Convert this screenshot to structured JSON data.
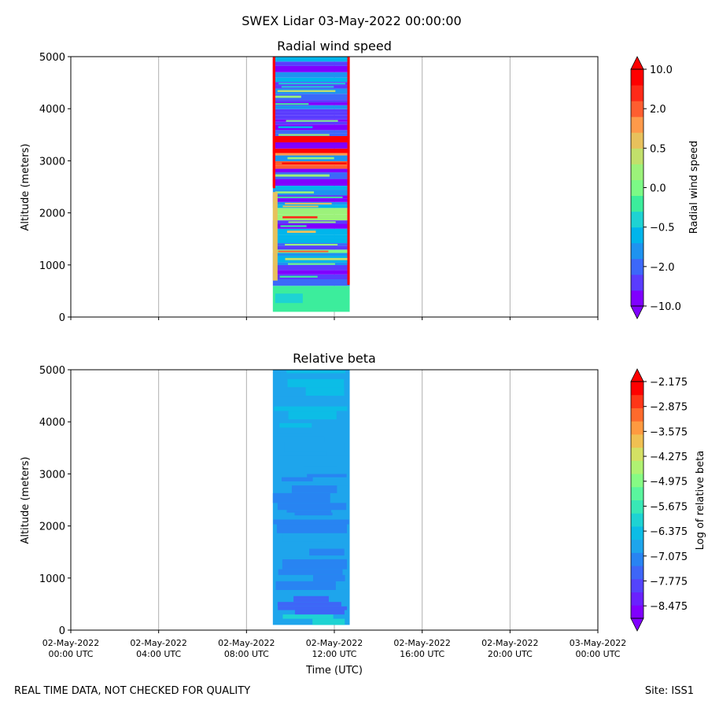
{
  "chart_data": {
    "type": "heatmap",
    "suptitle": "SWEX Lidar 03-May-2022 00:00:00",
    "xlabel": "Time (UTC)",
    "x_ticks": [
      {
        "hours": 0,
        "line1": "02-May-2022",
        "line2": "00:00 UTC"
      },
      {
        "hours": 4,
        "line1": "02-May-2022",
        "line2": "04:00 UTC"
      },
      {
        "hours": 8,
        "line1": "02-May-2022",
        "line2": "08:00 UTC"
      },
      {
        "hours": 12,
        "line1": "02-May-2022",
        "line2": "12:00 UTC"
      },
      {
        "hours": 16,
        "line1": "02-May-2022",
        "line2": "16:00 UTC"
      },
      {
        "hours": 20,
        "line1": "02-May-2022",
        "line2": "20:00 UTC"
      },
      {
        "hours": 24,
        "line1": "03-May-2022",
        "line2": "00:00 UTC"
      }
    ],
    "xlim_hours": [
      0,
      24
    ],
    "data_time_range_hours": [
      9.2,
      12.7
    ],
    "panels": [
      {
        "id": "top",
        "title": "Radial wind speed",
        "ylabel": "Altitude (meters)",
        "ylim": [
          0,
          5000
        ],
        "y_ticks": [
          0,
          1000,
          2000,
          3000,
          4000,
          5000
        ],
        "colorbar_label": "Radial wind speed",
        "colorbar_ticks": [
          "10.0",
          "2.0",
          "0.5",
          "0.0",
          "−0.5",
          "−2.0",
          "−10.0"
        ],
        "colormap": [
          "#8000ff",
          "#5a3cfe",
          "#3c68f9",
          "#1e93f0",
          "#00b5eb",
          "#1ed3d3",
          "#3ced9c",
          "#7cfa86",
          "#9cf27a",
          "#c2e06b",
          "#e8c15c",
          "#ff9a4a",
          "#ff5e30",
          "#ff2a18",
          "#ff0000"
        ]
      },
      {
        "id": "bottom",
        "title": "Relative beta",
        "ylabel": "Altitude (meters)",
        "ylim": [
          0,
          5000
        ],
        "y_ticks": [
          0,
          1000,
          2000,
          3000,
          4000,
          5000
        ],
        "colorbar_label": "Log of relative beta",
        "colorbar_ticks": [
          "−2.175",
          "−2.875",
          "−3.575",
          "−4.275",
          "−4.975",
          "−5.675",
          "−6.375",
          "−7.075",
          "−7.775",
          "−8.475"
        ],
        "colormap": [
          "#8000ff",
          "#6a22fe",
          "#5444fc",
          "#3e66f7",
          "#2884f2",
          "#1ea5ec",
          "#0cbde6",
          "#1ed3d3",
          "#38e8b6",
          "#5af59e",
          "#86fb84",
          "#b0f272",
          "#d4e064",
          "#f0c052",
          "#ff9a40",
          "#ff6a2c",
          "#ff3618",
          "#ff0000"
        ]
      }
    ]
  },
  "footer": {
    "left": "REAL TIME DATA, NOT CHECKED FOR QUALITY",
    "right": "Site: ISS1"
  }
}
